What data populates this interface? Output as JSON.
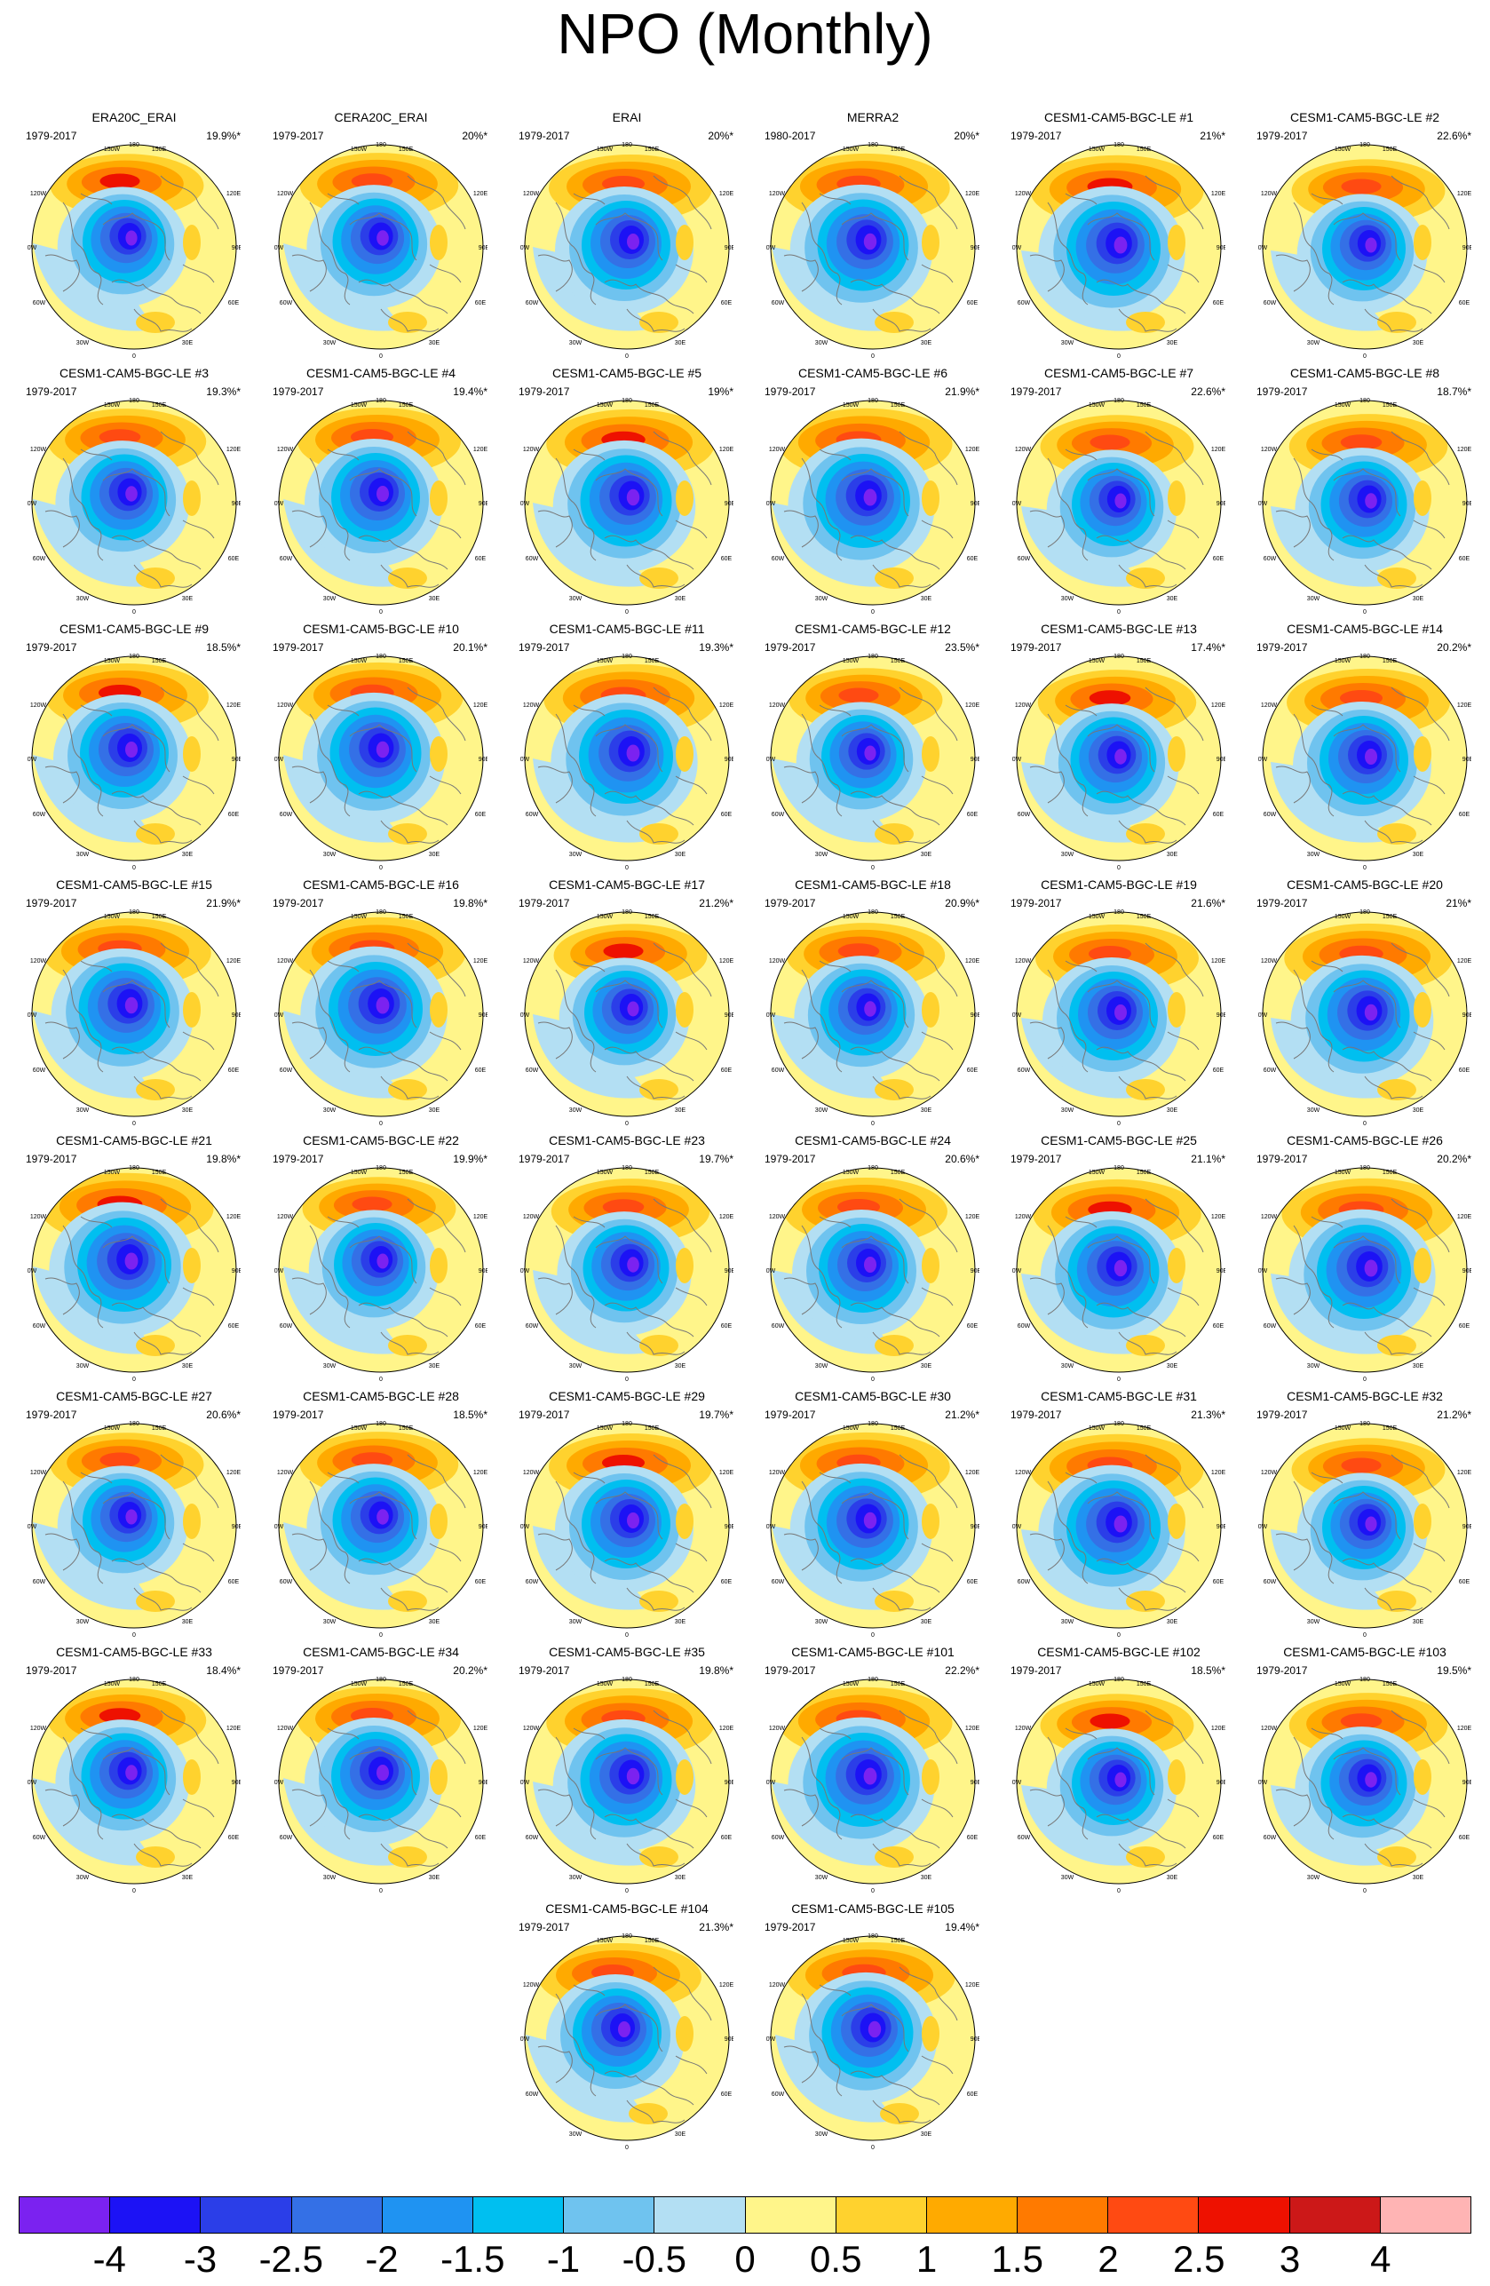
{
  "title": "NPO (Monthly)",
  "map_labels": {
    "top": "180",
    "tl": "150W",
    "tr": "150E",
    "ul": "120W",
    "ur": "120E",
    "l": "90W",
    "r": "90E",
    "ll": "60W",
    "lr": "60E",
    "bl": "30W",
    "br": "30E",
    "bottom": "0"
  },
  "panels": [
    {
      "title": "ERA20C_ERAI",
      "period": "1979-2017",
      "pct": "19.9%*"
    },
    {
      "title": "CERA20C_ERAI",
      "period": "1979-2017",
      "pct": "20%*"
    },
    {
      "title": "ERAI",
      "period": "1979-2017",
      "pct": "20%*"
    },
    {
      "title": "MERRA2",
      "period": "1980-2017",
      "pct": "20%*"
    },
    {
      "title": "CESM1-CAM5-BGC-LE #1",
      "period": "1979-2017",
      "pct": "21%*"
    },
    {
      "title": "CESM1-CAM5-BGC-LE #2",
      "period": "1979-2017",
      "pct": "22.6%*"
    },
    {
      "title": "CESM1-CAM5-BGC-LE #3",
      "period": "1979-2017",
      "pct": "19.3%*"
    },
    {
      "title": "CESM1-CAM5-BGC-LE #4",
      "period": "1979-2017",
      "pct": "19.4%*"
    },
    {
      "title": "CESM1-CAM5-BGC-LE #5",
      "period": "1979-2017",
      "pct": "19%*"
    },
    {
      "title": "CESM1-CAM5-BGC-LE #6",
      "period": "1979-2017",
      "pct": "21.9%*"
    },
    {
      "title": "CESM1-CAM5-BGC-LE #7",
      "period": "1979-2017",
      "pct": "22.6%*"
    },
    {
      "title": "CESM1-CAM5-BGC-LE #8",
      "period": "1979-2017",
      "pct": "18.7%*"
    },
    {
      "title": "CESM1-CAM5-BGC-LE #9",
      "period": "1979-2017",
      "pct": "18.5%*"
    },
    {
      "title": "CESM1-CAM5-BGC-LE #10",
      "period": "1979-2017",
      "pct": "20.1%*"
    },
    {
      "title": "CESM1-CAM5-BGC-LE #11",
      "period": "1979-2017",
      "pct": "19.3%*"
    },
    {
      "title": "CESM1-CAM5-BGC-LE #12",
      "period": "1979-2017",
      "pct": "23.5%*"
    },
    {
      "title": "CESM1-CAM5-BGC-LE #13",
      "period": "1979-2017",
      "pct": "17.4%*"
    },
    {
      "title": "CESM1-CAM5-BGC-LE #14",
      "period": "1979-2017",
      "pct": "20.2%*"
    },
    {
      "title": "CESM1-CAM5-BGC-LE #15",
      "period": "1979-2017",
      "pct": "21.9%*"
    },
    {
      "title": "CESM1-CAM5-BGC-LE #16",
      "period": "1979-2017",
      "pct": "19.8%*"
    },
    {
      "title": "CESM1-CAM5-BGC-LE #17",
      "period": "1979-2017",
      "pct": "21.2%*"
    },
    {
      "title": "CESM1-CAM5-BGC-LE #18",
      "period": "1979-2017",
      "pct": "20.9%*"
    },
    {
      "title": "CESM1-CAM5-BGC-LE #19",
      "period": "1979-2017",
      "pct": "21.6%*"
    },
    {
      "title": "CESM1-CAM5-BGC-LE #20",
      "period": "1979-2017",
      "pct": "21%*"
    },
    {
      "title": "CESM1-CAM5-BGC-LE #21",
      "period": "1979-2017",
      "pct": "19.8%*"
    },
    {
      "title": "CESM1-CAM5-BGC-LE #22",
      "period": "1979-2017",
      "pct": "19.9%*"
    },
    {
      "title": "CESM1-CAM5-BGC-LE #23",
      "period": "1979-2017",
      "pct": "19.7%*"
    },
    {
      "title": "CESM1-CAM5-BGC-LE #24",
      "period": "1979-2017",
      "pct": "20.6%*"
    },
    {
      "title": "CESM1-CAM5-BGC-LE #25",
      "period": "1979-2017",
      "pct": "21.1%*"
    },
    {
      "title": "CESM1-CAM5-BGC-LE #26",
      "period": "1979-2017",
      "pct": "20.2%*"
    },
    {
      "title": "CESM1-CAM5-BGC-LE #27",
      "period": "1979-2017",
      "pct": "20.6%*"
    },
    {
      "title": "CESM1-CAM5-BGC-LE #28",
      "period": "1979-2017",
      "pct": "18.5%*"
    },
    {
      "title": "CESM1-CAM5-BGC-LE #29",
      "period": "1979-2017",
      "pct": "19.7%*"
    },
    {
      "title": "CESM1-CAM5-BGC-LE #30",
      "period": "1979-2017",
      "pct": "21.2%*"
    },
    {
      "title": "CESM1-CAM5-BGC-LE #31",
      "period": "1979-2017",
      "pct": "21.3%*"
    },
    {
      "title": "CESM1-CAM5-BGC-LE #32",
      "period": "1979-2017",
      "pct": "21.2%*"
    },
    {
      "title": "CESM1-CAM5-BGC-LE #33",
      "period": "1979-2017",
      "pct": "18.4%*"
    },
    {
      "title": "CESM1-CAM5-BGC-LE #34",
      "period": "1979-2017",
      "pct": "20.2%*"
    },
    {
      "title": "CESM1-CAM5-BGC-LE #35",
      "period": "1979-2017",
      "pct": "19.8%*"
    },
    {
      "title": "CESM1-CAM5-BGC-LE #101",
      "period": "1979-2017",
      "pct": "22.2%*"
    },
    {
      "title": "CESM1-CAM5-BGC-LE #102",
      "period": "1979-2017",
      "pct": "18.5%*"
    },
    {
      "title": "CESM1-CAM5-BGC-LE #103",
      "period": "1979-2017",
      "pct": "19.5%*"
    },
    {
      "title": "CESM1-CAM5-BGC-LE #104",
      "period": "1979-2017",
      "pct": "21.3%*"
    },
    {
      "title": "CESM1-CAM5-BGC-LE #105",
      "period": "1979-2017",
      "pct": "19.4%*"
    }
  ],
  "colorbar": {
    "colors": [
      "#7b22f0",
      "#1c12f5",
      "#2b3ee8",
      "#3470e6",
      "#1f93f2",
      "#00bff0",
      "#6fc3ef",
      "#b3dff3",
      "#fff58a",
      "#ffd22e",
      "#ffaa00",
      "#ff7a00",
      "#ff4a12",
      "#ee1100",
      "#cc1818",
      "#ffb4b4"
    ],
    "labels": [
      "-4",
      "-3",
      "-2.5",
      "-2",
      "-1.5",
      "-1",
      "-0.5",
      "0",
      "0.5",
      "1",
      "1.5",
      "2",
      "2.5",
      "3",
      "4"
    ]
  }
}
